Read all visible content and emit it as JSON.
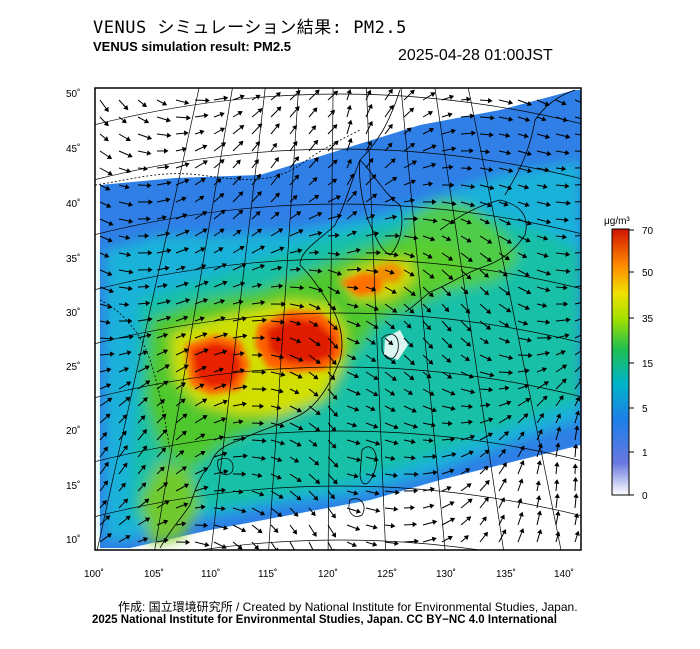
{
  "title": {
    "japanese": "VENUS シミュレーション結果: PM2.5",
    "english": "VENUS simulation result: PM2.5",
    "timestamp": "2025-04-28 01:00JST"
  },
  "map": {
    "lat_ticks": [
      "10˚",
      "15˚",
      "20˚",
      "25˚",
      "30˚",
      "35˚",
      "40˚",
      "45˚",
      "50˚"
    ],
    "lon_ticks": [
      "100˚",
      "105˚",
      "110˚",
      "115˚",
      "120˚",
      "125˚",
      "130˚",
      "135˚",
      "140˚"
    ]
  },
  "colorbar": {
    "unit": "μg/m³",
    "labels": [
      "70",
      "50",
      "35",
      "15",
      "5",
      "1",
      "0"
    ],
    "colors": [
      "#d81e00",
      "#ff7a00",
      "#f0d000",
      "#6cd400",
      "#00c070",
      "#29a0e8",
      "#3050d8",
      "#f4f4ff"
    ]
  },
  "footer": {
    "credit": "作成: 国立環境研究所 / Created by National Institute for Environmental Studies, Japan.",
    "license": "2025 National Institute for Environmental Studies, Japan. CC BY−NC 4.0 International"
  }
}
